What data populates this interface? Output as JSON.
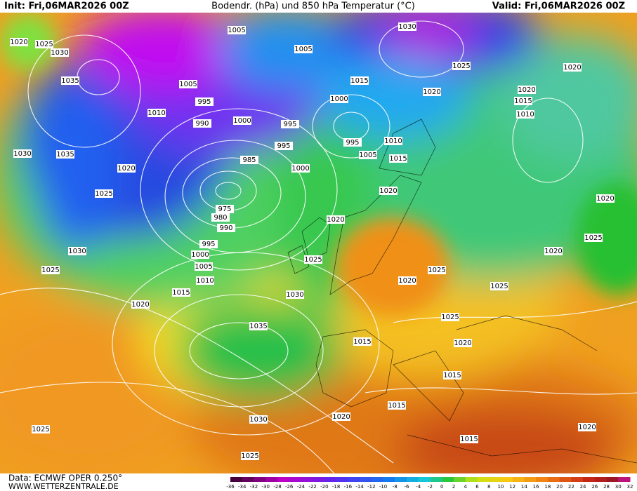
{
  "header": {
    "init": "Init: Fri,06MAR2026 00Z",
    "title": "Bodendr. (hPa) und 850 hPa Temperatur (°C)",
    "valid": "Valid: Fri,06MAR2026 00Z"
  },
  "footer": {
    "source": "Data: ECMWF OPER 0.250°",
    "site": "WWW.WETTERZENTRALE.DE"
  },
  "isobar_labels": [
    1020,
    1025,
    1030,
    1035,
    1005,
    1005,
    1005,
    995,
    1010,
    990,
    1000,
    995,
    1000,
    1015,
    995,
    985,
    1000,
    1035,
    1030,
    1020,
    1025,
    975,
    980,
    990,
    995,
    1000,
    1005,
    1010,
    1015,
    1020,
    1030,
    1025,
    1030,
    1025,
    1020,
    1020,
    1020,
    1015,
    1010,
    995,
    1010,
    1005,
    1015,
    1020,
    1020,
    1025,
    1030,
    1025,
    1020,
    1025,
    1025,
    1020,
    1020,
    1025,
    1035,
    1015,
    1020,
    1015,
    1015,
    1020,
    1030,
    1025,
    1025,
    1015,
    1020
  ],
  "colorbar_ticks": [
    -36,
    -34,
    -32,
    -30,
    -28,
    -26,
    -24,
    -22,
    -20,
    -18,
    -16,
    -14,
    -12,
    -10,
    -8,
    -6,
    -4,
    -2,
    0,
    2,
    4,
    6,
    8,
    10,
    12,
    14,
    16,
    18,
    20,
    22,
    24,
    26,
    28,
    30,
    32
  ]
}
